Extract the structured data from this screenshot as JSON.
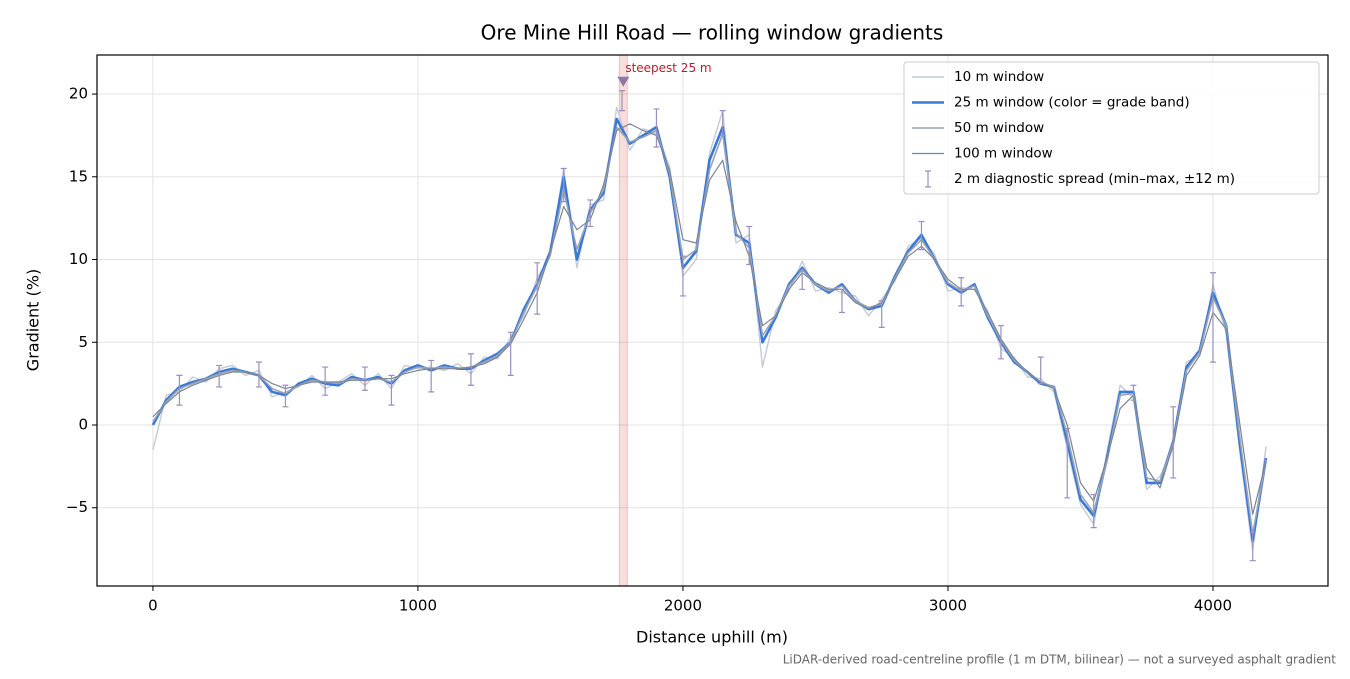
{
  "chart_data": {
    "type": "line",
    "title": "Ore Mine Hill Road — rolling window gradients",
    "xlabel": "Distance uphill (m)",
    "ylabel": "Gradient (%)",
    "footnote": "LiDAR-derived road-centreline profile (1 m DTM, bilinear) — not a surveyed asphalt gradient",
    "xlim": [
      -211,
      4434
    ],
    "ylim": [
      -9.73,
      22.36
    ],
    "xticks": [
      0,
      1000,
      2000,
      3000,
      4000
    ],
    "yticks": [
      {
        "value": -5,
        "label": "−5"
      },
      0,
      5,
      10,
      15,
      20
    ],
    "grid": true,
    "legend": "upper right",
    "x": [
      0,
      50,
      100,
      150,
      200,
      250,
      300,
      350,
      400,
      450,
      500,
      550,
      600,
      650,
      700,
      750,
      800,
      850,
      900,
      950,
      1000,
      1050,
      1100,
      1150,
      1200,
      1250,
      1300,
      1350,
      1400,
      1450,
      1500,
      1550,
      1600,
      1650,
      1700,
      1750,
      1800,
      1850,
      1900,
      1950,
      2000,
      2050,
      2100,
      2150,
      2200,
      2250,
      2300,
      2350,
      2400,
      2450,
      2500,
      2550,
      2600,
      2650,
      2700,
      2750,
      2800,
      2850,
      2900,
      2950,
      3000,
      3050,
      3100,
      3150,
      3200,
      3250,
      3300,
      3350,
      3400,
      3450,
      3500,
      3550,
      3600,
      3650,
      3700,
      3750,
      3800,
      3850,
      3900,
      3950,
      4000,
      4050,
      4100,
      4150,
      4200
    ],
    "series": [
      {
        "name": "10 m window",
        "color": "#c3cbd6",
        "values": [
          -1.5,
          1.8,
          2.0,
          2.9,
          2.6,
          3.4,
          3.6,
          3.0,
          3.3,
          1.7,
          2.0,
          2.3,
          3.0,
          2.2,
          2.6,
          3.1,
          2.4,
          3.1,
          2.2,
          3.6,
          3.4,
          3.5,
          3.3,
          3.7,
          3.1,
          4.1,
          4.0,
          5.3,
          6.6,
          8.9,
          10.2,
          15.5,
          9.5,
          13.3,
          13.6,
          19.2,
          16.6,
          17.9,
          17.6,
          15.6,
          9.0,
          10.0,
          16.4,
          19.0,
          11.0,
          11.5,
          3.5,
          6.9,
          8.1,
          9.9,
          8.1,
          8.3,
          8.0,
          7.8,
          6.6,
          7.6,
          8.7,
          10.8,
          11.3,
          10.3,
          8.1,
          8.3,
          8.2,
          6.9,
          4.6,
          4.1,
          2.9,
          2.8,
          2.0,
          -1.4,
          -4.8,
          -6.0,
          -1.6,
          2.4,
          1.6,
          -3.9,
          -3.1,
          -1.4,
          3.8,
          4.2,
          8.5,
          5.5,
          -1.5,
          -7.6,
          -1.3
        ]
      },
      {
        "name": "25 m window (color = grade band)",
        "color": "#3a78d8",
        "values": [
          0,
          1.5,
          2.3,
          2.6,
          2.8,
          3.2,
          3.4,
          3.2,
          3.0,
          2.0,
          1.8,
          2.5,
          2.8,
          2.5,
          2.4,
          2.9,
          2.7,
          2.9,
          2.5,
          3.3,
          3.6,
          3.3,
          3.6,
          3.4,
          3.4,
          3.9,
          4.3,
          5.0,
          7.0,
          8.5,
          10.5,
          15.0,
          10.0,
          13.0,
          14.0,
          18.5,
          17.0,
          17.5,
          18.0,
          15.0,
          9.5,
          10.5,
          16.0,
          18.0,
          11.5,
          11.0,
          5.0,
          6.5,
          8.5,
          9.5,
          8.5,
          8.0,
          8.5,
          7.5,
          7.0,
          7.2,
          9.0,
          10.5,
          11.5,
          10.0,
          8.5,
          8.0,
          8.5,
          6.5,
          5.0,
          3.8,
          3.2,
          2.5,
          2.3,
          -1.0,
          -4.5,
          -5.5,
          -2.0,
          2.0,
          2.0,
          -3.5,
          -3.5,
          -1.0,
          3.5,
          4.5,
          8.0,
          6.0,
          -1.0,
          -7.0,
          -2.0
        ]
      },
      {
        "name": "50 m window",
        "color": "#98a4b4",
        "values": [
          0.2,
          1.4,
          2.2,
          2.5,
          2.8,
          3.1,
          3.3,
          3.2,
          3.0,
          2.2,
          1.9,
          2.4,
          2.7,
          2.6,
          2.5,
          2.8,
          2.7,
          2.8,
          2.6,
          3.2,
          3.5,
          3.4,
          3.5,
          3.4,
          3.5,
          3.8,
          4.2,
          5.0,
          6.8,
          8.4,
          10.3,
          14.2,
          10.6,
          12.8,
          14.2,
          18.0,
          17.1,
          17.4,
          17.8,
          15.2,
          10.0,
          10.6,
          15.4,
          17.6,
          11.6,
          10.7,
          5.4,
          6.6,
          8.4,
          9.4,
          8.5,
          8.1,
          8.4,
          7.5,
          7.1,
          7.3,
          8.9,
          10.4,
          11.2,
          10.0,
          8.6,
          8.1,
          8.4,
          6.6,
          5.1,
          3.9,
          3.2,
          2.6,
          2.3,
          -0.6,
          -4.2,
          -5.3,
          -2.2,
          1.8,
          1.9,
          -3.2,
          -3.4,
          -1.1,
          3.3,
          4.4,
          7.7,
          6.0,
          -0.6,
          -6.6,
          -2.1
        ]
      },
      {
        "name": "100 m window",
        "color": "#7a8494",
        "values": [
          0.5,
          1.3,
          2.0,
          2.4,
          2.7,
          3.0,
          3.2,
          3.2,
          3.0,
          2.5,
          2.2,
          2.4,
          2.6,
          2.6,
          2.6,
          2.7,
          2.7,
          2.8,
          2.8,
          3.1,
          3.3,
          3.4,
          3.4,
          3.4,
          3.5,
          3.7,
          4.1,
          4.9,
          6.4,
          8.0,
          10.5,
          13.2,
          11.8,
          12.4,
          14.5,
          17.8,
          18.2,
          17.8,
          17.5,
          15.4,
          11.2,
          11.0,
          14.8,
          16.0,
          12.3,
          10.2,
          6.0,
          6.6,
          8.2,
          9.2,
          8.6,
          8.2,
          8.2,
          7.4,
          7.0,
          7.4,
          8.8,
          10.2,
          10.8,
          10.0,
          8.8,
          8.2,
          8.2,
          6.8,
          5.2,
          4.0,
          3.2,
          2.6,
          2.2,
          0.0,
          -3.5,
          -4.6,
          -2.0,
          1.0,
          1.8,
          -2.6,
          -3.8,
          -1.2,
          3.0,
          4.2,
          6.8,
          5.8,
          0.2,
          -5.4,
          -2.2
        ]
      }
    ],
    "error_bars": {
      "name": "2 m diagnostic spread (min–max, ±12 m)",
      "color": "#9a8fc0",
      "x": [
        100,
        250,
        400,
        500,
        650,
        800,
        900,
        1050,
        1200,
        1350,
        1450,
        1550,
        1650,
        1770,
        1900,
        2000,
        2150,
        2250,
        2450,
        2600,
        2750,
        2900,
        3050,
        3200,
        3350,
        3450,
        3550,
        3700,
        3850,
        4000,
        4150
      ],
      "low": [
        1.2,
        2.3,
        2.3,
        1.1,
        1.8,
        2.1,
        1.2,
        2.0,
        2.4,
        3.0,
        6.7,
        13.5,
        12.0,
        19.0,
        16.8,
        7.8,
        17.5,
        9.7,
        8.2,
        6.8,
        5.9,
        10.6,
        7.2,
        4.0,
        2.5,
        -4.4,
        -6.2,
        1.5,
        -3.2,
        3.8,
        -8.2
      ],
      "high": [
        3.0,
        3.6,
        3.8,
        2.4,
        3.5,
        3.5,
        3.0,
        3.9,
        4.3,
        5.6,
        9.8,
        15.5,
        13.6,
        20.2,
        19.1,
        10.2,
        19.0,
        12.0,
        9.3,
        8.2,
        7.5,
        12.3,
        8.9,
        6.0,
        4.1,
        -0.2,
        -4.2,
        2.4,
        1.1,
        9.2,
        -6.5
      ]
    },
    "highlight": {
      "x": [
        1760,
        1790
      ],
      "peak": 20.2,
      "label": "steepest 25 m",
      "color": "#e05050"
    }
  }
}
